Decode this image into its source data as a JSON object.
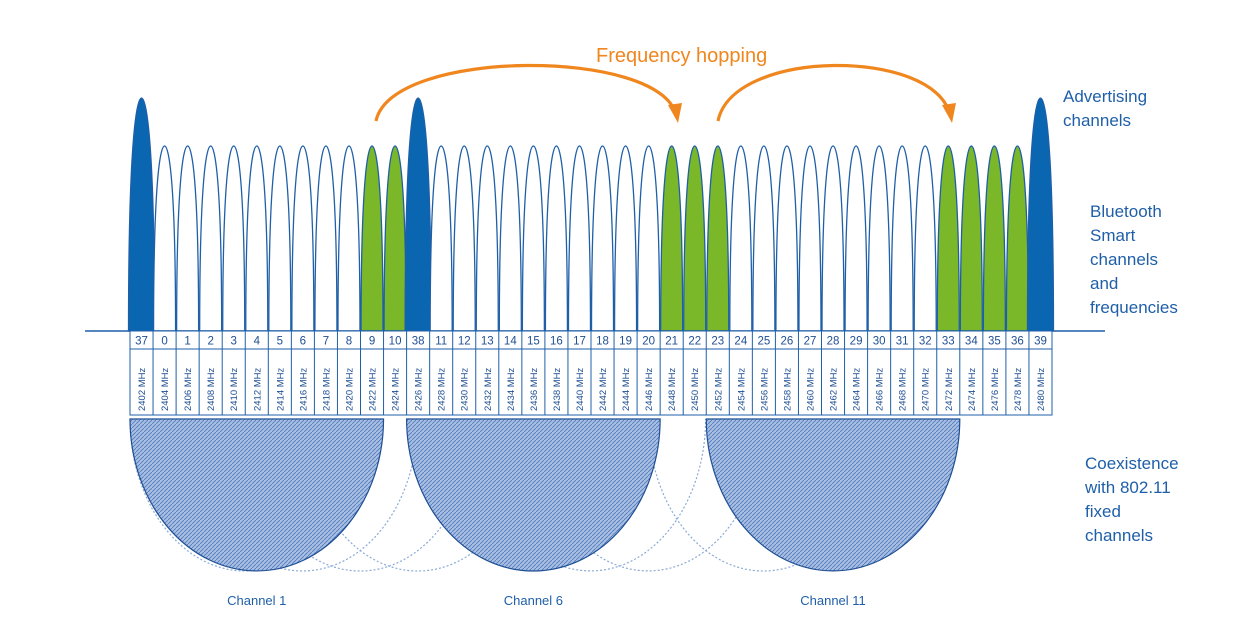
{
  "title": "Frequency hopping",
  "labels": {
    "advertising": "Advertising\nchannels",
    "bluetooth": "Bluetooth\nSmart\nchannels\nand\nfrequencies",
    "coexistence": "Coexistence\nwith 802.11\nfixed\nchannels"
  },
  "channels": [
    {
      "num": "37",
      "freq": "2402 MHz",
      "type": "advertising"
    },
    {
      "num": "0",
      "freq": "2404 MHz",
      "type": "data"
    },
    {
      "num": "1",
      "freq": "2406 MHz",
      "type": "data"
    },
    {
      "num": "2",
      "freq": "2408 MHz",
      "type": "data"
    },
    {
      "num": "3",
      "freq": "2410 MHz",
      "type": "data"
    },
    {
      "num": "4",
      "freq": "2412 MHz",
      "type": "data"
    },
    {
      "num": "5",
      "freq": "2414 MHz",
      "type": "data"
    },
    {
      "num": "6",
      "freq": "2416 MHz",
      "type": "data"
    },
    {
      "num": "7",
      "freq": "2418 MHz",
      "type": "data"
    },
    {
      "num": "8",
      "freq": "2420 MHz",
      "type": "data"
    },
    {
      "num": "9",
      "freq": "2422 MHz",
      "type": "hopping"
    },
    {
      "num": "10",
      "freq": "2424 MHz",
      "type": "hopping"
    },
    {
      "num": "38",
      "freq": "2426 MHz",
      "type": "advertising"
    },
    {
      "num": "11",
      "freq": "2428 MHz",
      "type": "data"
    },
    {
      "num": "12",
      "freq": "2430 MHz",
      "type": "data"
    },
    {
      "num": "13",
      "freq": "2432 MHz",
      "type": "data"
    },
    {
      "num": "14",
      "freq": "2434 MHz",
      "type": "data"
    },
    {
      "num": "15",
      "freq": "2436 MHz",
      "type": "data"
    },
    {
      "num": "16",
      "freq": "2438 MHz",
      "type": "data"
    },
    {
      "num": "17",
      "freq": "2440 MHz",
      "type": "data"
    },
    {
      "num": "18",
      "freq": "2442 MHz",
      "type": "data"
    },
    {
      "num": "19",
      "freq": "2444 MHz",
      "type": "data"
    },
    {
      "num": "20",
      "freq": "2446 MHz",
      "type": "data"
    },
    {
      "num": "21",
      "freq": "2448 MHz",
      "type": "hopping"
    },
    {
      "num": "22",
      "freq": "2450 MHz",
      "type": "hopping"
    },
    {
      "num": "23",
      "freq": "2452 MHz",
      "type": "hopping"
    },
    {
      "num": "24",
      "freq": "2454 MHz",
      "type": "data"
    },
    {
      "num": "25",
      "freq": "2456 MHz",
      "type": "data"
    },
    {
      "num": "26",
      "freq": "2458 MHz",
      "type": "data"
    },
    {
      "num": "27",
      "freq": "2460 MHz",
      "type": "data"
    },
    {
      "num": "28",
      "freq": "2462 MHz",
      "type": "data"
    },
    {
      "num": "29",
      "freq": "2464 MHz",
      "type": "data"
    },
    {
      "num": "30",
      "freq": "2466 MHz",
      "type": "data"
    },
    {
      "num": "31",
      "freq": "2468 MHz",
      "type": "data"
    },
    {
      "num": "32",
      "freq": "2470 MHz",
      "type": "data"
    },
    {
      "num": "33",
      "freq": "2472 MHz",
      "type": "hopping"
    },
    {
      "num": "34",
      "freq": "2474 MHz",
      "type": "hopping"
    },
    {
      "num": "35",
      "freq": "2476 MHz",
      "type": "hopping"
    },
    {
      "num": "36",
      "freq": "2478 MHz",
      "type": "hopping"
    },
    {
      "num": "39",
      "freq": "2480 MHz",
      "type": "advertising"
    }
  ],
  "wifi_channels": [
    {
      "label": "Channel 1",
      "start_index": 0,
      "end_index": 10
    },
    {
      "label": "Channel 6",
      "start_index": 12,
      "end_index": 22
    },
    {
      "label": "Channel 11",
      "start_index": 25,
      "end_index": 35
    }
  ],
  "colors": {
    "advertising": "#0b66b1",
    "hopping": "#7ab829",
    "outline": "#1f5fa8",
    "title": "#f0861e",
    "wifi_fill": "#8aaad6"
  }
}
